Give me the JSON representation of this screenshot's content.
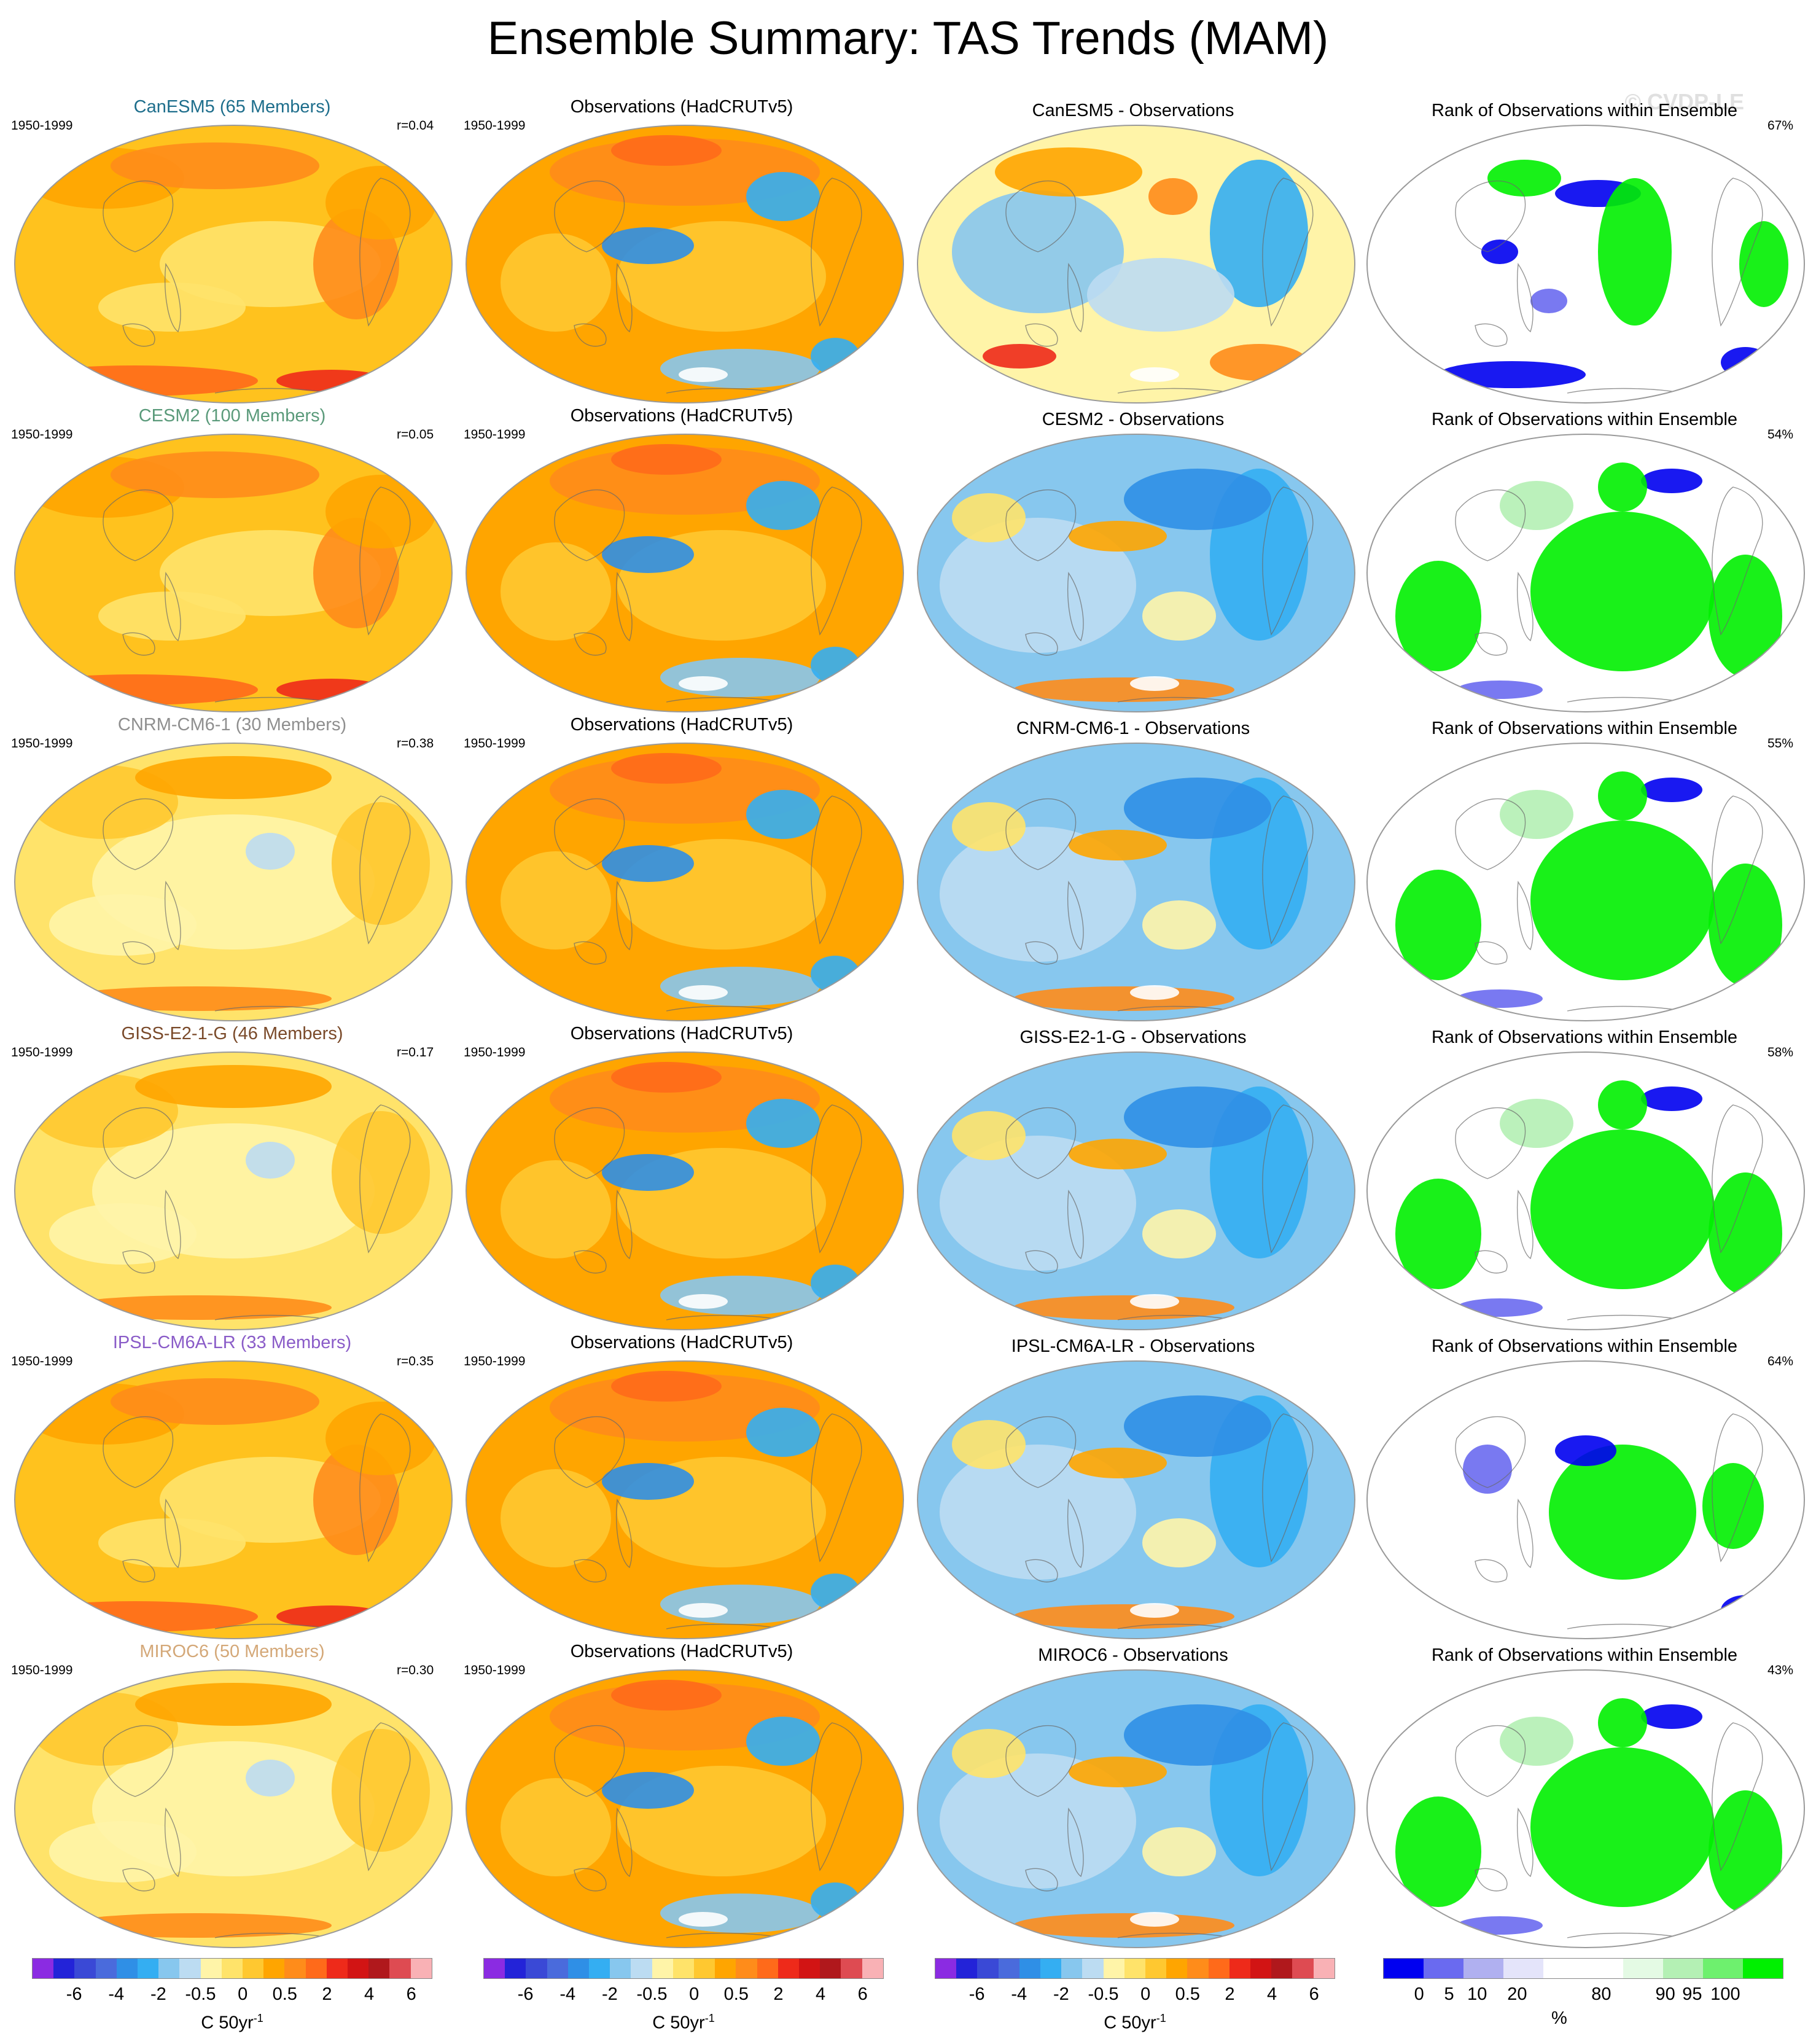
{
  "title": "Ensemble Summary: TAS Trends (MAM)",
  "watermark": "© CVDP-LE",
  "period": "1950-1999",
  "obs_title": "Observations (HadCRUTv5)",
  "rank_title": "Rank of Observations within Ensemble",
  "rows": [
    {
      "model_title": "CanESM5 (65 Members)",
      "model_color": "#1e6e8c",
      "r": "r=0.04",
      "diff_title": "CanESM5 - Observations",
      "rank_pct": "67%",
      "model_style": "warm",
      "diff_style": "mixed",
      "rank_style": "blueheavy"
    },
    {
      "model_title": "CESM2 (100 Members)",
      "model_color": "#5a9a7a",
      "r": "r=0.05",
      "diff_title": "CESM2 - Observations",
      "rank_pct": "54%",
      "model_style": "warm",
      "diff_style": "cool",
      "rank_style": "green"
    },
    {
      "model_title": "CNRM-CM6-1 (30 Members)",
      "model_color": "#8f8f8f",
      "r": "r=0.38",
      "diff_title": "CNRM-CM6-1 - Observations",
      "rank_pct": "55%",
      "model_style": "pale",
      "diff_style": "cool",
      "rank_style": "green"
    },
    {
      "model_title": "GISS-E2-1-G (46 Members)",
      "model_color": "#7a4a2a",
      "r": "r=0.17",
      "diff_title": "GISS-E2-1-G - Observations",
      "rank_pct": "58%",
      "model_style": "pale",
      "diff_style": "cool",
      "rank_style": "green"
    },
    {
      "model_title": "IPSL-CM6A-LR (33 Members)",
      "model_color": "#8a5cc8",
      "r": "r=0.35",
      "diff_title": "IPSL-CM6A-LR - Observations",
      "rank_pct": "64%",
      "model_style": "warm",
      "diff_style": "cool",
      "rank_style": "mixed"
    },
    {
      "model_title": "MIROC6 (50 Members)",
      "model_color": "#d4a878",
      "r": "r=0.30",
      "diff_title": "MIROC6 - Observations",
      "rank_pct": "43%",
      "model_style": "pale",
      "diff_style": "cool",
      "rank_style": "green"
    }
  ],
  "temp_colorbar": {
    "colors": [
      "#8b2be2",
      "#2323d8",
      "#3a49d6",
      "#4a6bdc",
      "#2f8fe6",
      "#34aef2",
      "#87c7ee",
      "#bcdcf2",
      "#fff4a8",
      "#ffe36a",
      "#ffc830",
      "#ffa500",
      "#ff8c1a",
      "#ff6a1a",
      "#ee2a1a",
      "#d21414",
      "#b0181c",
      "#de4b52",
      "#f9b1b5"
    ],
    "ticks": [
      "-6",
      "-4",
      "-2",
      "-0.5",
      "0",
      "0.5",
      "2",
      "4",
      "6"
    ],
    "unit": "C 50yr",
    "unit_sup": "-1"
  },
  "rank_colorbar": {
    "colors": [
      "#0000f0",
      "#6a6af0",
      "#b0b0f0",
      "#e4e4fa",
      "#ffffff",
      "#ffffff",
      "#e4fae4",
      "#b4f0b4",
      "#6ef06e",
      "#00f000"
    ],
    "ticks": [
      "0",
      "5",
      "10",
      "20",
      "80",
      "90",
      "95",
      "100"
    ],
    "unit": "%"
  }
}
